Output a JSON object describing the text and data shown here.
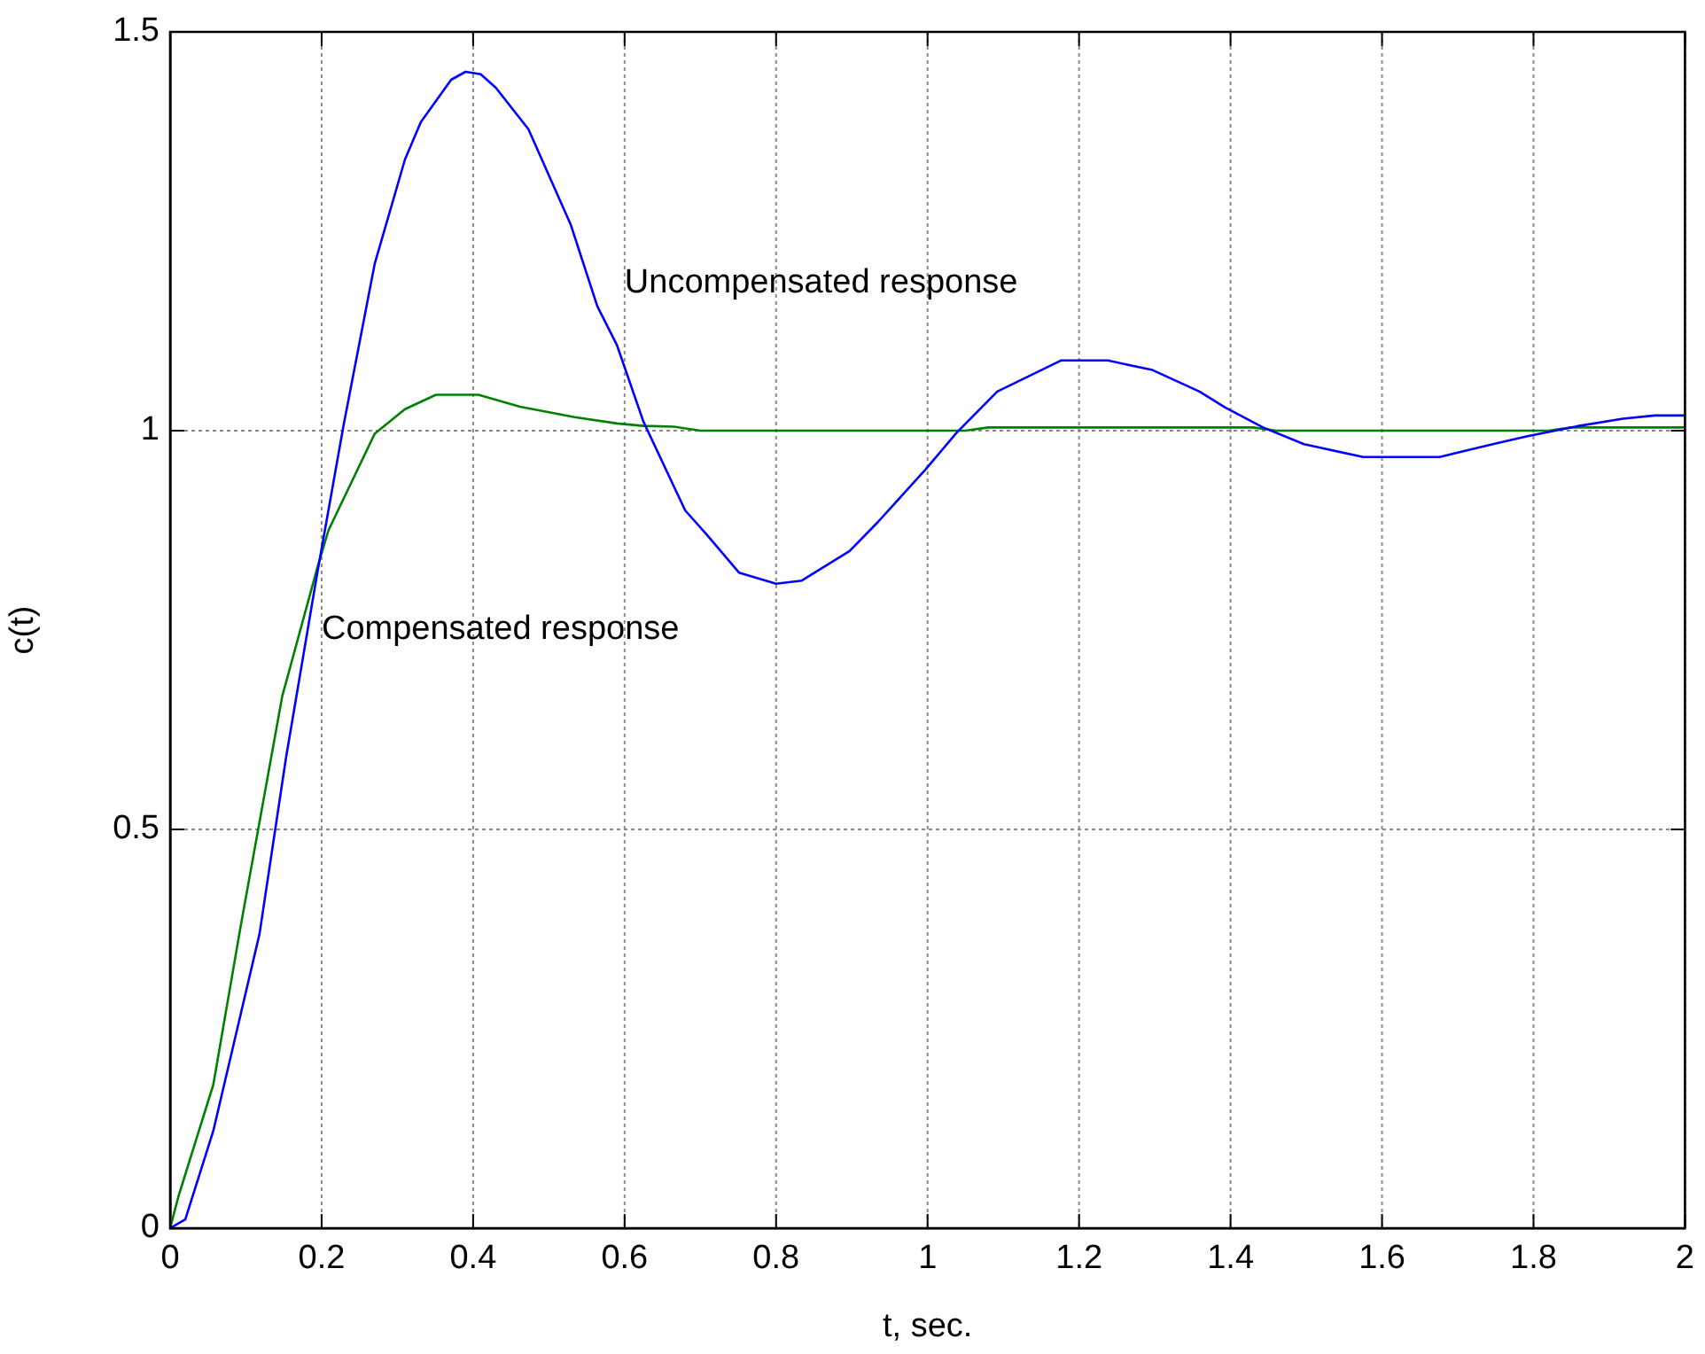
{
  "chart_data": {
    "type": "line",
    "xlabel": "t, sec.",
    "ylabel": "c(t)",
    "xlim": [
      0,
      2
    ],
    "ylim": [
      0,
      1.5
    ],
    "xticks": [
      0,
      0.2,
      0.4,
      0.6,
      0.8,
      1,
      1.2,
      1.4,
      1.6,
      1.8,
      2
    ],
    "yticks": [
      0,
      0.5,
      1,
      1.5
    ],
    "grid": true,
    "legend": false,
    "marker": "none",
    "line_style": "solid",
    "series": [
      {
        "color": "#0000ff",
        "x": [
          0,
          0.02,
          0.057,
          0.118,
          0.153,
          0.194,
          0.229,
          0.27,
          0.31,
          0.331,
          0.371,
          0.39,
          0.41,
          0.43,
          0.473,
          0.529,
          0.564,
          0.59,
          0.625,
          0.68,
          0.709,
          0.751,
          0.8,
          0.834,
          0.897,
          0.934,
          0.997,
          1.038,
          1.092,
          1.176,
          1.238,
          1.297,
          1.359,
          1.393,
          1.443,
          1.497,
          1.575,
          1.676,
          1.75,
          1.792,
          1.86,
          1.918,
          1.96,
          2
        ],
        "values": [
          0,
          0.011,
          0.122,
          0.369,
          0.59,
          0.82,
          1.007,
          1.209,
          1.34,
          1.387,
          1.44,
          1.45,
          1.447,
          1.43,
          1.378,
          1.258,
          1.156,
          1.107,
          1.011,
          0.9,
          0.869,
          0.822,
          0.808,
          0.812,
          0.849,
          0.885,
          0.951,
          0.997,
          1.049,
          1.088,
          1.088,
          1.076,
          1.049,
          1.029,
          1.004,
          0.983,
          0.967,
          0.967,
          0.984,
          0.993,
          1.006,
          1.015,
          1.019,
          1.019
        ]
      },
      {
        "color": "#008000",
        "x": [
          0,
          0.011,
          0.057,
          0.093,
          0.148,
          0.194,
          0.209,
          0.27,
          0.31,
          0.351,
          0.407,
          0.462,
          0.534,
          0.59,
          0.625,
          0.665,
          0.7,
          1.05,
          1.08,
          1.43,
          1.46,
          1.82,
          1.85,
          2
        ],
        "values": [
          0,
          0.04,
          0.18,
          0.378,
          0.667,
          0.827,
          0.875,
          0.996,
          1.027,
          1.045,
          1.045,
          1.03,
          1.017,
          1.009,
          1.006,
          1.005,
          1,
          1,
          1.004,
          1.004,
          1,
          1,
          1.004,
          1.004
        ]
      }
    ],
    "annotations": [
      "Uncompensated response",
      "Compensated response"
    ]
  }
}
